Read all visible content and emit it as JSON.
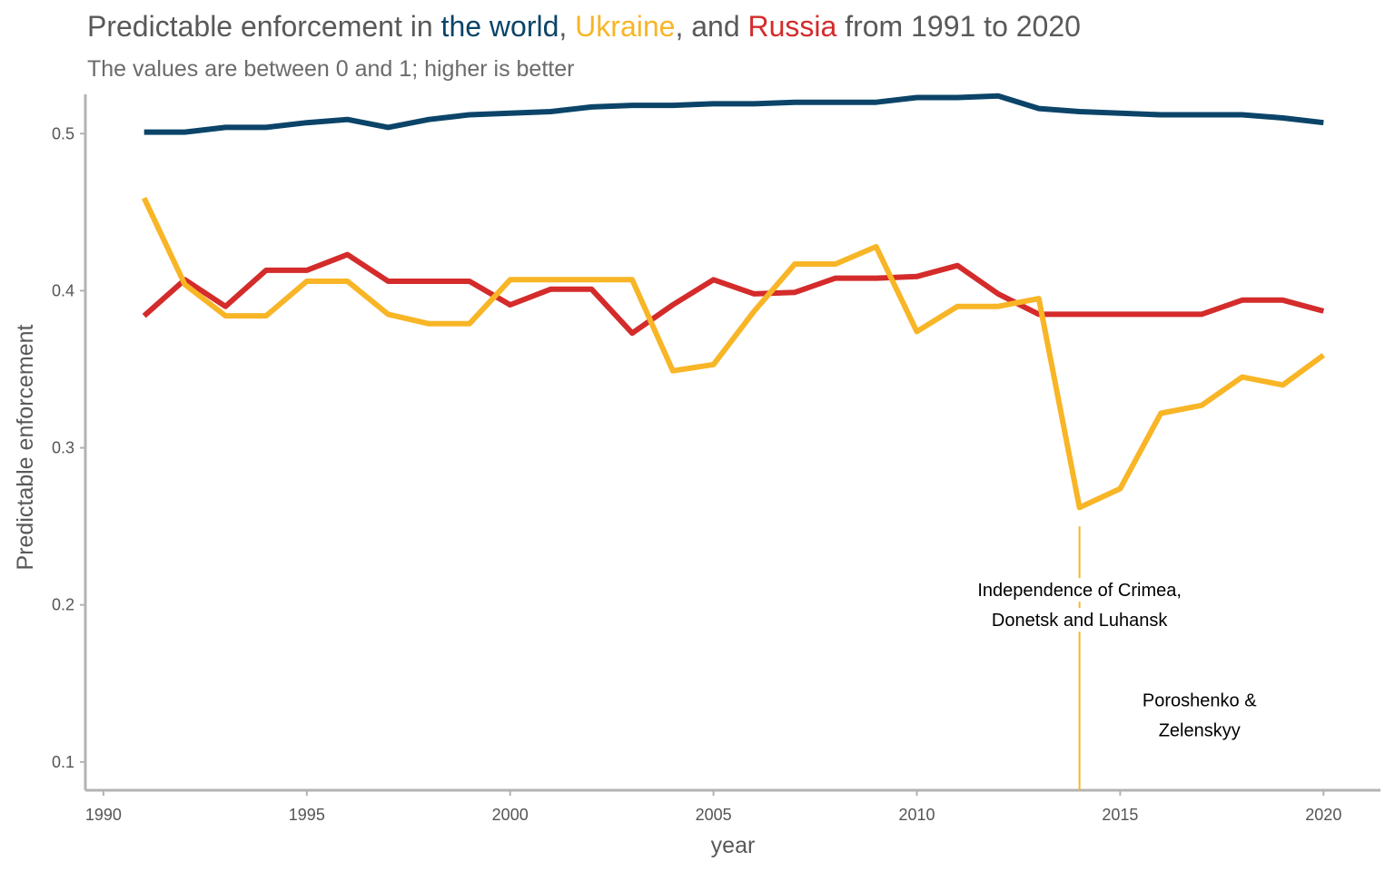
{
  "colors": {
    "world": "#0b4468",
    "ukraine": "#f8b526",
    "russia": "#d42b2b",
    "text": "#595959",
    "axis": "#b3b3b3"
  },
  "title": {
    "prefix": "Predictable enforcement in ",
    "world": "the world",
    "sep1": ", ",
    "ukraine": "Ukraine",
    "sep2": ", and ",
    "russia": "Russia",
    "suffix": " from 1991 to 2020"
  },
  "subtitle": "The values are between 0 and 1; higher is better",
  "chart_data": {
    "type": "line",
    "xlabel": "year",
    "ylabel": "Predictable enforcement",
    "xlim": [
      1989.6,
      2021.4
    ],
    "ylim": [
      0.082,
      0.525
    ],
    "x_ticks": [
      1990,
      1995,
      2000,
      2005,
      2010,
      2015,
      2020
    ],
    "y_ticks": [
      0.1,
      0.2,
      0.3,
      0.4,
      0.5
    ],
    "x_tick_labels": [
      "1990",
      "1995",
      "2000",
      "2005",
      "2010",
      "2015",
      "2020"
    ],
    "y_tick_labels": [
      "0.1",
      "0.2",
      "0.3",
      "0.4",
      "0.5"
    ],
    "grid": false,
    "x": [
      1991,
      1992,
      1993,
      1994,
      1995,
      1996,
      1997,
      1998,
      1999,
      2000,
      2001,
      2002,
      2003,
      2004,
      2005,
      2006,
      2007,
      2008,
      2009,
      2010,
      2011,
      2012,
      2013,
      2014,
      2015,
      2016,
      2017,
      2018,
      2019,
      2020
    ],
    "series": [
      {
        "key": "world",
        "values": [
          0.501,
          0.501,
          0.504,
          0.504,
          0.507,
          0.509,
          0.504,
          0.509,
          0.512,
          0.513,
          0.514,
          0.517,
          0.518,
          0.518,
          0.519,
          0.519,
          0.52,
          0.52,
          0.52,
          0.523,
          0.523,
          0.524,
          0.516,
          0.514,
          0.513,
          0.512,
          0.512,
          0.512,
          0.51,
          0.507
        ]
      },
      {
        "key": "ukraine",
        "values": [
          0.459,
          0.404,
          0.384,
          0.384,
          0.406,
          0.406,
          0.385,
          0.379,
          0.379,
          0.407,
          0.407,
          0.407,
          0.407,
          0.349,
          0.353,
          0.387,
          0.417,
          0.417,
          0.428,
          0.374,
          0.39,
          0.39,
          0.395,
          0.262,
          0.274,
          0.322,
          0.327,
          0.345,
          0.34,
          0.359
        ]
      },
      {
        "key": "russia",
        "values": [
          0.384,
          0.407,
          0.39,
          0.413,
          0.413,
          0.423,
          0.406,
          0.406,
          0.406,
          0.391,
          0.401,
          0.401,
          0.373,
          0.391,
          0.407,
          0.398,
          0.399,
          0.408,
          0.408,
          0.409,
          0.416,
          0.398,
          0.385,
          0.385,
          0.385,
          0.385,
          0.385,
          0.394,
          0.394,
          0.387
        ]
      }
    ],
    "annotations": [
      {
        "line_x": 2014,
        "line_from": 0.25,
        "line_to": 0.082,
        "text_lines": [
          "Independence of Crimea,",
          "Donetsk and Luhansk"
        ],
        "text_x": 2014,
        "text_y": 0.2
      },
      {
        "text_lines": [
          "Poroshenko &",
          "Zelenskyy"
        ],
        "text_x": 2016.95,
        "text_y": 0.13
      }
    ]
  }
}
